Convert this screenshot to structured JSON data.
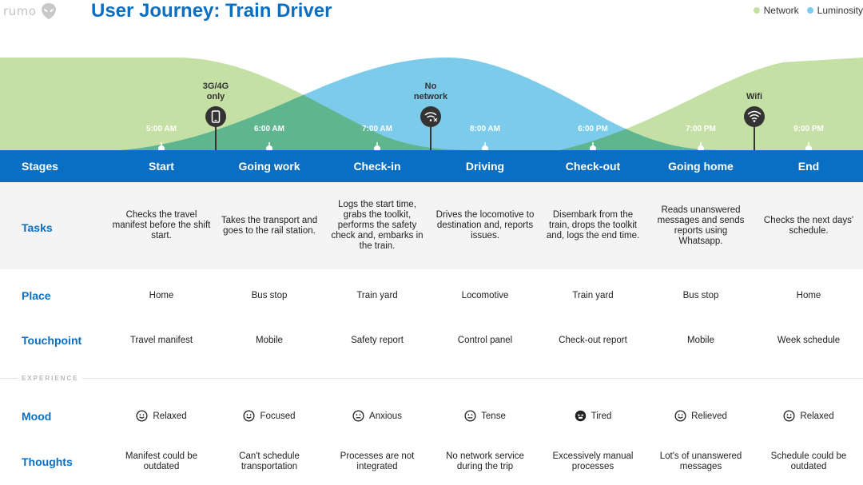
{
  "brand": {
    "name": "rumo"
  },
  "title": "User Journey: Train Driver",
  "legend": [
    {
      "label": "Network",
      "color": "#c5e0a5"
    },
    {
      "label": "Luminosity",
      "color": "#7dcbea"
    }
  ],
  "colors": {
    "primary": "#0a6fc2",
    "network": "#c5e0a5",
    "luminosity": "#7dcbea",
    "overlap": "#5fb58d"
  },
  "times": [
    "5:00 AM",
    "6:00 AM",
    "7:00 AM",
    "8:00 AM",
    "6:00 PM",
    "7:00 PM",
    "9:00 PM"
  ],
  "markers": [
    {
      "label": "3G/4G only",
      "icon": "phone-icon"
    },
    {
      "label": "No network",
      "icon": "no-wifi-icon"
    },
    {
      "label": "Wifi",
      "icon": "wifi-icon"
    }
  ],
  "rows": {
    "stages": "Stages",
    "tasks": "Tasks",
    "place": "Place",
    "touchpoint": "Touchpoint",
    "experience": "EXPERIENCE",
    "mood": "Mood",
    "thoughts": "Thoughts"
  },
  "stages": [
    {
      "name": "Start",
      "task": "Checks the travel manifest before the shift start.",
      "place": "Home",
      "touchpoint": "Travel manifest",
      "mood": "Relaxed",
      "mood_icon": "smile-icon",
      "thought": "Manifest could be outdated"
    },
    {
      "name": "Going work",
      "task": "Takes the transport and goes to the rail station.",
      "place": "Bus stop",
      "touchpoint": "Mobile",
      "mood": "Focused",
      "mood_icon": "smile-icon",
      "thought": "Can't schedule transportation"
    },
    {
      "name": "Check-in",
      "task": "Logs the start time, grabs the toolkit, performs the safety check and, embarks in the train.",
      "place": "Train yard",
      "touchpoint": "Safety report",
      "mood": "Anxious",
      "mood_icon": "neutral-face-icon",
      "thought": "Processes are not integrated"
    },
    {
      "name": "Driving",
      "task": "Drives the locomotive to destination and, reports issues.",
      "place": "Locomotive",
      "touchpoint": "Control panel",
      "mood": "Tense",
      "mood_icon": "neutral-face-icon",
      "thought": "No network service during the trip"
    },
    {
      "name": "Check-out",
      "task": "Disembark from the train, drops the toolkit and, logs the end time.",
      "place": "Train yard",
      "touchpoint": "Check-out report",
      "mood": "Tired",
      "mood_icon": "tired-face-icon",
      "thought": "Excessively manual processes"
    },
    {
      "name": "Going home",
      "task": "Reads unanswered messages and sends reports using Whatsapp.",
      "place": "Bus stop",
      "touchpoint": "Mobile",
      "mood": "Relieved",
      "mood_icon": "smile-icon",
      "thought": "Lot's of unanswered messages"
    },
    {
      "name": "End",
      "task": "Checks the next days' schedule.",
      "place": "Home",
      "touchpoint": "Week schedule",
      "mood": "Relaxed",
      "mood_icon": "smile-icon",
      "thought": "Schedule could be outdated"
    }
  ]
}
